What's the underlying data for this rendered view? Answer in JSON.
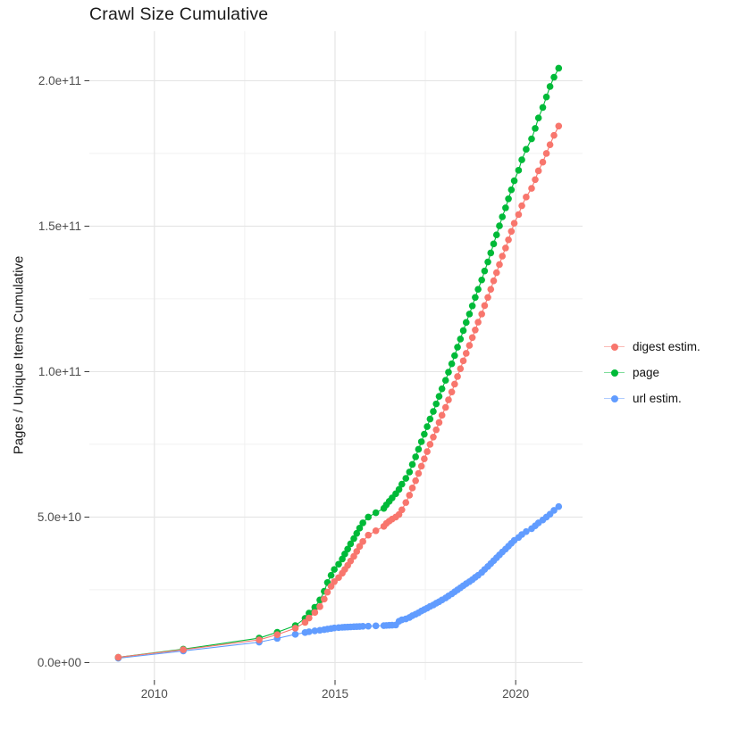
{
  "title": "Crawl Size Cumulative",
  "colors": {
    "digest": "#F8766D",
    "page": "#00BA38",
    "url": "#619CFF",
    "grid_major": "#e5e5e5",
    "grid_minor": "#f1f1f1",
    "tick_mark": "#333333",
    "tick_label": "#4d4d4d",
    "text": "#1a1a1a",
    "background": "#ffffff"
  },
  "legend": {
    "items": [
      {
        "label": "digest estim.",
        "color": "#F8766D"
      },
      {
        "label": "page",
        "color": "#00BA38"
      },
      {
        "label": "url estim.",
        "color": "#619CFF"
      }
    ]
  },
  "chart_data": {
    "type": "line",
    "title": "Crawl Size Cumulative",
    "xlabel": "",
    "ylabel": "Pages / Unique Items Cumulative",
    "legend_position": "right",
    "grid": true,
    "xlim": [
      2008.2,
      2021.85
    ],
    "ylim": [
      -6000000000.0,
      217000000000.0
    ],
    "x_ticks": [
      2010,
      2015,
      2020
    ],
    "x_tick_labels": [
      "2010",
      "2015",
      "2020"
    ],
    "x_minor": [
      2012.5,
      2017.5
    ],
    "y_ticks": [
      0,
      50000000000.0,
      100000000000.0,
      150000000000.0,
      200000000000.0
    ],
    "y_tick_labels": [
      "0.0e+00",
      "5.0e+10",
      "1.0e+11",
      "1.5e+11",
      "2.0e+11"
    ],
    "y_minor": [
      25000000000.0,
      75000000000.0,
      125000000000.0,
      175000000000.0
    ],
    "x": [
      2009.0,
      2010.8,
      2012.9,
      2013.4,
      2013.9,
      2014.17,
      2014.28,
      2014.44,
      2014.58,
      2014.7,
      2014.79,
      2014.89,
      2014.98,
      2015.1,
      2015.2,
      2015.27,
      2015.35,
      2015.43,
      2015.52,
      2015.6,
      2015.68,
      2015.77,
      2015.92,
      2016.13,
      2016.35,
      2016.42,
      2016.5,
      2016.58,
      2016.68,
      2016.77,
      2016.85,
      2016.96,
      2017.06,
      2017.14,
      2017.23,
      2017.31,
      2017.39,
      2017.47,
      2017.55,
      2017.63,
      2017.72,
      2017.8,
      2017.88,
      2017.96,
      2018.06,
      2018.14,
      2018.23,
      2018.31,
      2018.39,
      2018.47,
      2018.55,
      2018.63,
      2018.72,
      2018.8,
      2018.88,
      2018.96,
      2019.06,
      2019.14,
      2019.23,
      2019.31,
      2019.39,
      2019.47,
      2019.55,
      2019.63,
      2019.72,
      2019.8,
      2019.88,
      2019.96,
      2020.08,
      2020.17,
      2020.29,
      2020.44,
      2020.54,
      2020.63,
      2020.75,
      2020.85,
      2020.95,
      2021.06,
      2021.19
    ],
    "series": [
      {
        "name": "digest estim.",
        "color": "#F8766D",
        "values": [
          1800000000.0,
          4400000000.0,
          7800000000.0,
          9600000000.0,
          11800000000.0,
          13800000000.0,
          15300000000.0,
          17200000000.0,
          19200000000.0,
          21800000000.0,
          24200000000.0,
          26200000000.0,
          27800000000.0,
          29200000000.0,
          30700000000.0,
          32000000000.0,
          33400000000.0,
          34900000000.0,
          36500000000.0,
          38200000000.0,
          39900000000.0,
          41600000000.0,
          43800000000.0,
          45300000000.0,
          46800000000.0,
          47800000000.0,
          48600000000.0,
          49300000000.0,
          50000000000.0,
          50900000000.0,
          52500000000.0,
          55000000000.0,
          57500000000.0,
          60000000000.0,
          62500000000.0,
          65000000000.0,
          67500000000.0,
          70000000000.0,
          72500000000.0,
          75000000000.0,
          77500000000.0,
          80000000000.0,
          82500000000.0,
          85000000000.0,
          87700000000.0,
          90300000000.0,
          93000000000.0,
          95700000000.0,
          98300000000.0,
          101000000000.0,
          103700000000.0,
          106300000000.0,
          109000000000.0,
          111700000000.0,
          114300000000.0,
          117000000000.0,
          119800000000.0,
          122700000000.0,
          125500000000.0,
          128300000000.0,
          131200000000.0,
          134000000000.0,
          136800000000.0,
          139700000000.0,
          142500000000.0,
          145300000000.0,
          148200000000.0,
          151000000000.0,
          154000000000.0,
          157000000000.0,
          160000000000.0,
          163000000000.0,
          166000000000.0,
          169000000000.0,
          172000000000.0,
          175000000000.0,
          178000000000.0,
          181200000000.0,
          184400000000.0
        ]
      },
      {
        "name": "page",
        "color": "#00BA38",
        "values": [
          1800000000.0,
          4600000000.0,
          8400000000.0,
          10400000000.0,
          12700000000.0,
          15200000000.0,
          17000000000.0,
          19000000000.0,
          21500000000.0,
          24500000000.0,
          27500000000.0,
          30000000000.0,
          32000000000.0,
          33800000000.0,
          35600000000.0,
          37300000000.0,
          39000000000.0,
          40800000000.0,
          42600000000.0,
          44400000000.0,
          46200000000.0,
          48000000000.0,
          50000000000.0,
          51500000000.0,
          53000000000.0,
          54200000000.0,
          55400000000.0,
          56600000000.0,
          58000000000.0,
          59500000000.0,
          61300000000.0,
          63300000000.0,
          65500000000.0,
          68100000000.0,
          70700000000.0,
          73300000000.0,
          75900000000.0,
          78500000000.0,
          81100000000.0,
          83700000000.0,
          86300000000.0,
          88900000000.0,
          91500000000.0,
          94100000000.0,
          97000000000.0,
          99800000000.0,
          102700000000.0,
          105500000000.0,
          108400000000.0,
          111200000000.0,
          114100000000.0,
          116900000000.0,
          119800000000.0,
          122600000000.0,
          125500000000.0,
          128300000000.0,
          131500000000.0,
          134600000000.0,
          137700000000.0,
          140800000000.0,
          143900000000.0,
          147000000000.0,
          150100000000.0,
          153200000000.0,
          156300000000.0,
          159400000000.0,
          162500000000.0,
          165600000000.0,
          169200000000.0,
          172800000000.0,
          176400000000.0,
          180000000000.0,
          183600000000.0,
          187200000000.0,
          190800000000.0,
          194400000000.0,
          198000000000.0,
          201200000000.0,
          204300000000.0
        ]
      },
      {
        "name": "url estim.",
        "color": "#619CFF",
        "values": [
          1500000000.0,
          4000000000.0,
          7000000000.0,
          8300000000.0,
          9700000000.0,
          10300000000.0,
          10600000000.0,
          10900000000.0,
          11100000000.0,
          11300000000.0,
          11500000000.0,
          11700000000.0,
          11900000000.0,
          12000000000.0,
          12100000000.0,
          12150000000.0,
          12200000000.0,
          12250000000.0,
          12300000000.0,
          12350000000.0,
          12400000000.0,
          12450000000.0,
          12500000000.0,
          12600000000.0,
          12700000000.0,
          12750000000.0,
          12800000000.0,
          12850000000.0,
          12900000000.0,
          14200000000.0,
          14700000000.0,
          15000000000.0,
          15500000000.0,
          16100000000.0,
          16600000000.0,
          17100000000.0,
          17700000000.0,
          18200000000.0,
          18700000000.0,
          19300000000.0,
          19800000000.0,
          20400000000.0,
          20900000000.0,
          21500000000.0,
          22200000000.0,
          22900000000.0,
          23600000000.0,
          24300000000.0,
          25000000000.0,
          25700000000.0,
          26400000000.0,
          27100000000.0,
          27800000000.0,
          28500000000.0,
          29300000000.0,
          30000000000.0,
          31000000000.0,
          32000000000.0,
          33000000000.0,
          34000000000.0,
          35000000000.0,
          36000000000.0,
          37000000000.0,
          38000000000.0,
          39000000000.0,
          40000000000.0,
          41000000000.0,
          42000000000.0,
          43000000000.0,
          44000000000.0,
          45000000000.0,
          46000000000.0,
          47000000000.0,
          48000000000.0,
          49000000000.0,
          50000000000.0,
          51000000000.0,
          52300000000.0,
          53600000000.0
        ]
      }
    ]
  }
}
